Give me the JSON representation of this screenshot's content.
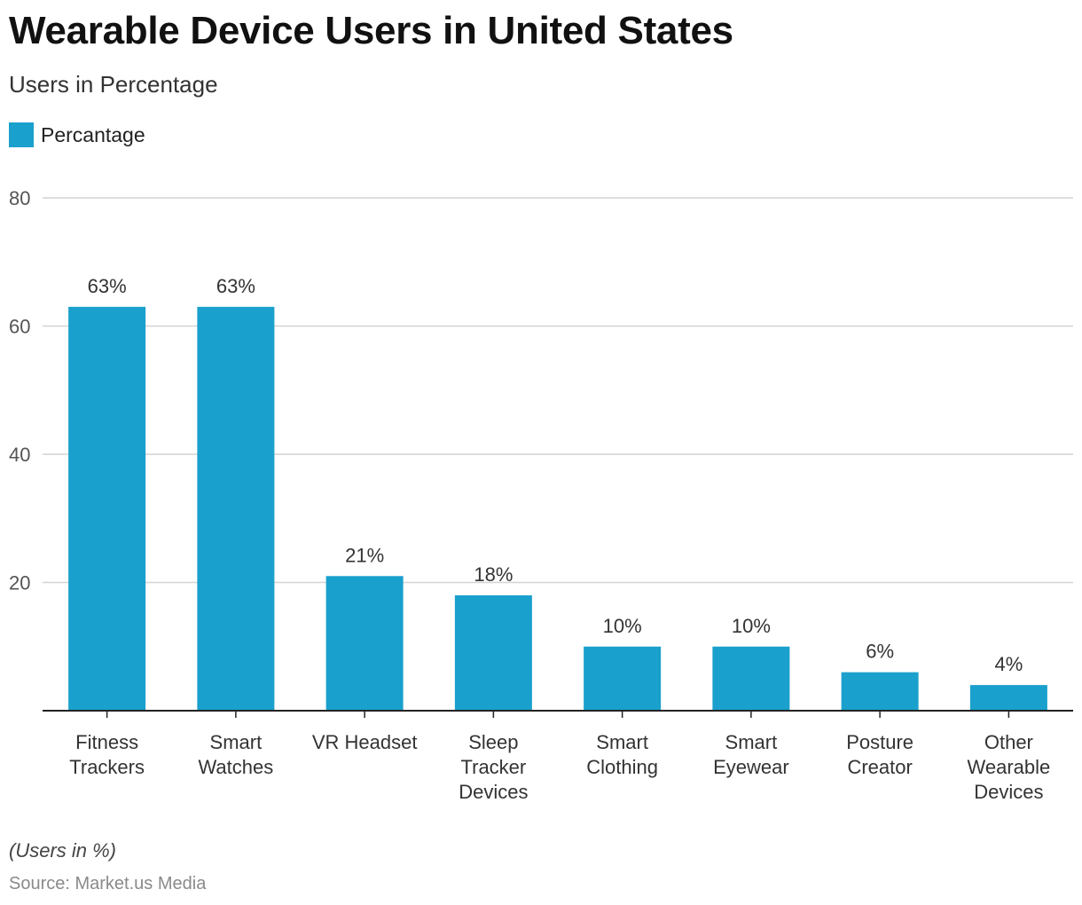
{
  "chart_data": {
    "type": "bar",
    "title": "Wearable Device Users in United States",
    "subtitle": "Users in Percentage",
    "categories": [
      [
        "Fitness",
        "Trackers"
      ],
      [
        "Smart",
        "Watches"
      ],
      [
        "VR Headset"
      ],
      [
        "Sleep",
        "Tracker",
        "Devices"
      ],
      [
        "Smart",
        "Clothing"
      ],
      [
        "Smart",
        "Eyewear"
      ],
      [
        "Posture",
        "Creator"
      ],
      [
        "Other",
        "Wearable",
        "Devices"
      ]
    ],
    "series": [
      {
        "name": "Percantage",
        "color": "#1aa0cc",
        "values": [
          63,
          63,
          21,
          18,
          10,
          10,
          6,
          4
        ],
        "labels": [
          "63%",
          "63%",
          "21%",
          "18%",
          "10%",
          "10%",
          "6%",
          "4%"
        ]
      }
    ],
    "ylim": [
      0,
      80
    ],
    "yticks": [
      20,
      40,
      60,
      80
    ],
    "xlabel": "",
    "ylabel": "",
    "grid": true,
    "legend_position": "top-left",
    "note": "(Users in %)",
    "source": "Source: Market.us Media"
  }
}
